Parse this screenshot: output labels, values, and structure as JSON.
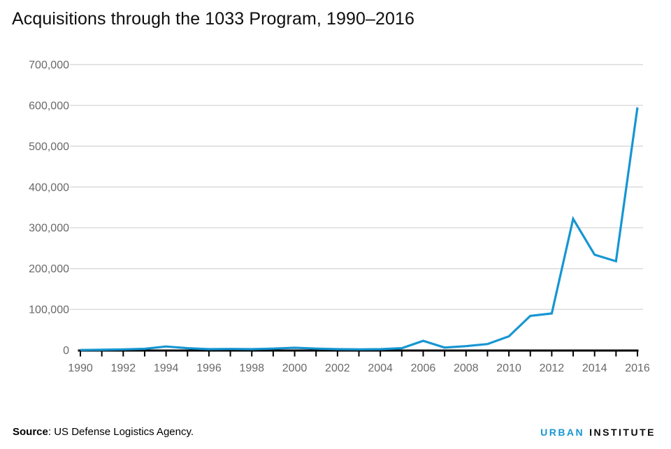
{
  "title": "Acquisitions through the 1033 Program, 1990–2016",
  "footer": {
    "source_label": "Source",
    "source_text": ": US Defense Logistics Agency.",
    "logo": {
      "part1": "URBAN",
      "part2": "INSTITUTE"
    }
  },
  "colors": {
    "line": "#1696d2",
    "grid": "#d9d9d9",
    "axis": "#000000",
    "tick_label": "#696969",
    "logo_blue": "#1696d2",
    "logo_black": "#0a0a0a"
  },
  "chart_data": {
    "type": "line",
    "title": "Acquisitions through the 1033 Program, 1990–2016",
    "xlabel": "",
    "ylabel": "",
    "x": [
      1990,
      1991,
      1992,
      1993,
      1994,
      1995,
      1996,
      1997,
      1998,
      1999,
      2000,
      2001,
      2002,
      2003,
      2004,
      2005,
      2006,
      2007,
      2008,
      2009,
      2010,
      2011,
      2012,
      2013,
      2014,
      2015,
      2016
    ],
    "values": [
      500,
      1000,
      2000,
      3500,
      9000,
      5000,
      2500,
      3000,
      2500,
      4000,
      6000,
      4000,
      2500,
      2000,
      2500,
      5000,
      23000,
      6500,
      10000,
      15000,
      34000,
      84000,
      90000,
      322000,
      234000,
      218000,
      595000
    ],
    "xlim": [
      1990,
      2016
    ],
    "ylim": [
      0,
      700000
    ],
    "ytick_step": 100000,
    "y_tick_labels": [
      "0",
      "100,000",
      "200,000",
      "300,000",
      "400,000",
      "500,000",
      "600,000",
      "700,000"
    ],
    "x_tick_labels": [
      "1990",
      "1992",
      "1994",
      "1996",
      "1998",
      "2000",
      "2002",
      "2004",
      "2006",
      "2008",
      "2010",
      "2012",
      "2014",
      "2016"
    ],
    "x_minor_ticks_every_year": true,
    "grid": "horizontal",
    "legend": "none"
  }
}
